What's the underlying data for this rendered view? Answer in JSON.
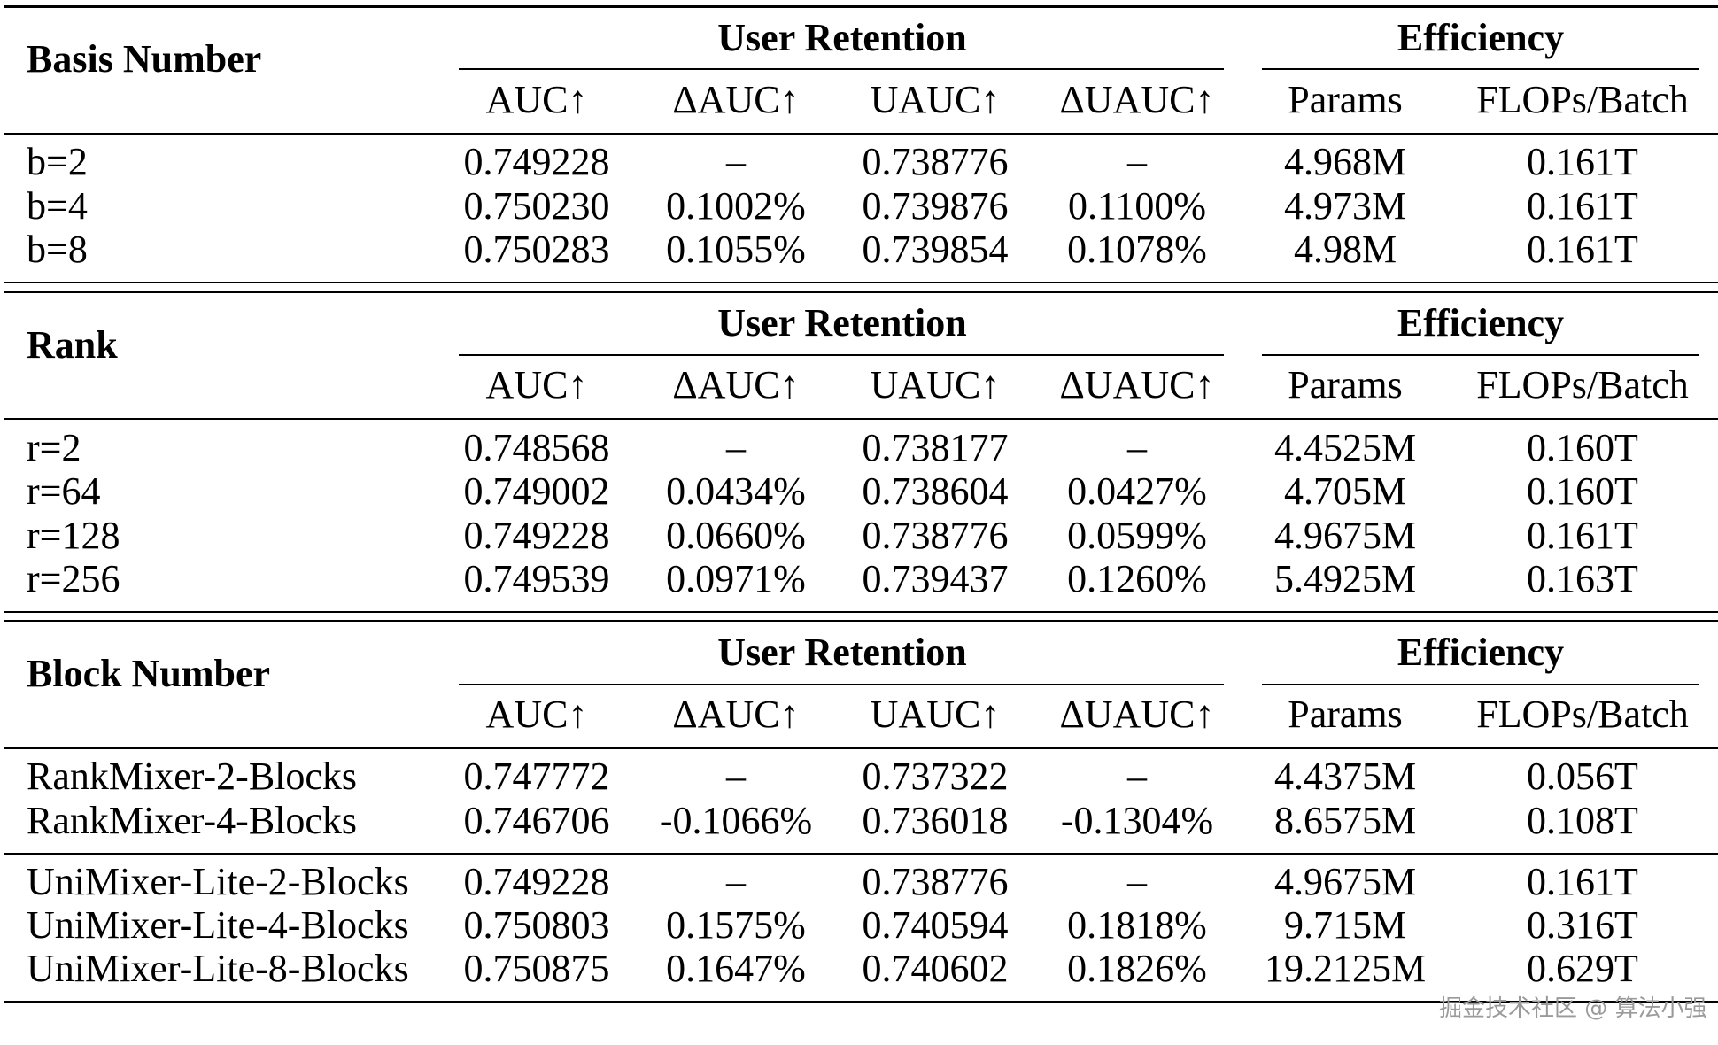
{
  "sections": [
    {
      "title": "Basis Number",
      "group_user": "User Retention",
      "group_eff": "Efficiency",
      "columns": [
        "AUC↑",
        "ΔAUC↑",
        "UAUC↑",
        "ΔUAUC↑",
        "Params",
        "FLOPs/Batch"
      ],
      "rows": [
        [
          "b=2",
          "0.749228",
          "–",
          "0.738776",
          "–",
          "4.968M",
          "0.161T"
        ],
        [
          "b=4",
          "0.750230",
          "0.1002%",
          "0.739876",
          "0.1100%",
          "4.973M",
          "0.161T"
        ],
        [
          "b=8",
          "0.750283",
          "0.1055%",
          "0.739854",
          "0.1078%",
          "4.98M",
          "0.161T"
        ]
      ]
    },
    {
      "title": "Rank",
      "group_user": "User Retention",
      "group_eff": "Efficiency",
      "columns": [
        "AUC↑",
        "ΔAUC↑",
        "UAUC↑",
        "ΔUAUC↑",
        "Params",
        "FLOPs/Batch"
      ],
      "rows": [
        [
          "r=2",
          "0.748568",
          "–",
          "0.738177",
          "–",
          "4.4525M",
          "0.160T"
        ],
        [
          "r=64",
          "0.749002",
          "0.0434%",
          "0.738604",
          "0.0427%",
          "4.705M",
          "0.160T"
        ],
        [
          "r=128",
          "0.749228",
          "0.0660%",
          "0.738776",
          "0.0599%",
          "4.9675M",
          "0.161T"
        ],
        [
          "r=256",
          "0.749539",
          "0.0971%",
          "0.739437",
          "0.1260%",
          "5.4925M",
          "0.163T"
        ]
      ]
    },
    {
      "title": "Block Number",
      "group_user": "User Retention",
      "group_eff": "Efficiency",
      "columns": [
        "AUC↑",
        "ΔAUC↑",
        "UAUC↑",
        "ΔUAUC↑",
        "Params",
        "FLOPs/Batch"
      ],
      "rows": [
        [
          "RankMixer-2-Blocks",
          "0.747772",
          "–",
          "0.737322",
          "–",
          "4.4375M",
          "0.056T"
        ],
        [
          "RankMixer-4-Blocks",
          "0.746706",
          "-0.1066%",
          "0.736018",
          "-0.1304%",
          "8.6575M",
          "0.108T"
        ],
        [
          "UniMixer-Lite-2-Blocks",
          "0.749228",
          "–",
          "0.738776",
          "–",
          "4.9675M",
          "0.161T"
        ],
        [
          "UniMixer-Lite-4-Blocks",
          "0.750803",
          "0.1575%",
          "0.740594",
          "0.1818%",
          "9.715M",
          "0.316T"
        ],
        [
          "UniMixer-Lite-8-Blocks",
          "0.750875",
          "0.1647%",
          "0.740602",
          "0.1826%",
          "19.2125M",
          "0.629T"
        ]
      ]
    }
  ],
  "watermark": "掘金技术社区 @ 算法小强"
}
